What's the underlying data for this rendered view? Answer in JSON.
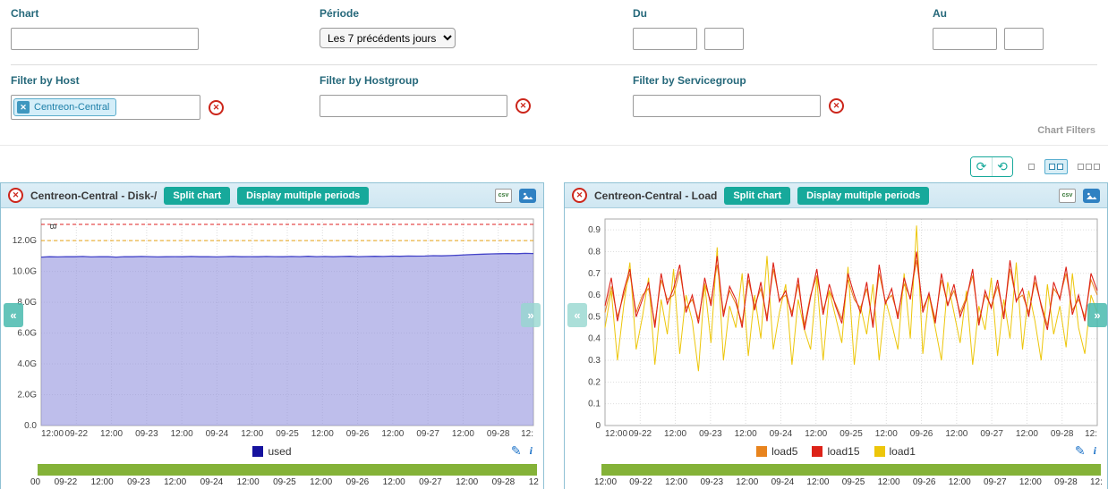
{
  "filters": {
    "chart": {
      "label": "Chart",
      "value": ""
    },
    "periode": {
      "label": "Période",
      "selected": "Les 7 précédents jours"
    },
    "du": {
      "label": "Du",
      "date": "",
      "time": ""
    },
    "au": {
      "label": "Au",
      "date": "",
      "time": ""
    },
    "host": {
      "label": "Filter by Host",
      "chip": "Centreon-Central"
    },
    "hostgroup": {
      "label": "Filter by Hostgroup",
      "value": ""
    },
    "servicegroup": {
      "label": "Filter by Servicegroup",
      "value": ""
    },
    "section_label": "Chart Filters"
  },
  "toolbar": {
    "refresh_icon": "circular-arrows",
    "autorefresh_icon": "clock-refresh",
    "layout_options": [
      "one-column",
      "two-columns",
      "three-columns"
    ],
    "active_layout": "two-columns"
  },
  "colors": {
    "teal": "#17a99b",
    "label_teal": "#25687a",
    "green_bar": "#84b238",
    "panel_border": "#8fc1d4",
    "warning": "#e7a213",
    "critical": "#df2020"
  },
  "charts": [
    {
      "title": "Centreon-Central - Disk-/",
      "split_label": "Split chart",
      "periods_label": "Display multiple periods",
      "legend": [
        {
          "name": "used",
          "color": "#16129e"
        }
      ],
      "range_labels": [
        "00",
        "09-22",
        "12:00",
        "09-23",
        "12:00",
        "09-24",
        "12:00",
        "09-25",
        "12:00",
        "09-26",
        "12:00",
        "09-27",
        "12:00",
        "09-28",
        "12"
      ],
      "chart_data": {
        "type": "area",
        "unit": "B",
        "ylim": [
          0,
          13.4
        ],
        "yticks": [
          {
            "v": 0,
            "label": "0.0"
          },
          {
            "v": 2,
            "label": "2.0G"
          },
          {
            "v": 4,
            "label": "4.0G"
          },
          {
            "v": 6,
            "label": "6.0G"
          },
          {
            "v": 8,
            "label": "8.0G"
          },
          {
            "v": 10,
            "label": "10.0G"
          },
          {
            "v": 12,
            "label": "12.0G"
          }
        ],
        "xticks": [
          "12:00",
          "09-22",
          "12:00",
          "09-23",
          "12:00",
          "09-24",
          "12:00",
          "09-25",
          "12:00",
          "09-26",
          "12:00",
          "09-27",
          "12:00",
          "09-28",
          "12:"
        ],
        "thresholds": [
          {
            "name": "warning",
            "value": 12.0,
            "color": "#e7a213"
          },
          {
            "name": "critical",
            "value": 13.05,
            "color": "#df2020"
          }
        ],
        "series": [
          {
            "name": "used",
            "color": "#4343c8",
            "fill": "rgba(147,147,222,0.6)",
            "width": 1.3,
            "values": [
              10.93,
              10.95,
              10.94,
              10.96,
              10.95,
              10.97,
              10.94,
              10.96,
              10.95,
              10.93,
              10.96,
              10.95,
              10.97,
              10.96,
              10.94,
              10.95,
              10.96,
              10.95,
              10.97,
              10.95,
              10.96,
              10.94,
              10.96,
              10.97,
              10.95,
              10.96,
              10.95,
              10.97,
              10.96,
              10.95,
              10.97,
              10.96,
              10.98,
              10.96,
              10.97,
              10.95,
              10.97,
              10.98,
              10.96,
              10.97,
              10.98,
              10.97,
              10.99,
              10.98,
              11.0,
              10.99,
              11.0,
              11.02,
              11.01,
              11.03,
              11.05,
              11.08,
              11.1,
              11.12,
              11.14,
              11.15,
              11.16,
              11.15,
              11.17,
              11.16
            ]
          }
        ]
      }
    },
    {
      "title": "Centreon-Central - Load",
      "split_label": "Split chart",
      "periods_label": "Display multiple periods",
      "legend": [
        {
          "name": "load5",
          "color": "#e8841e"
        },
        {
          "name": "load15",
          "color": "#dd2218"
        },
        {
          "name": "load1",
          "color": "#edc60a"
        }
      ],
      "range_labels": [
        "12:00",
        "09-22",
        "12:00",
        "09-23",
        "12:00",
        "09-24",
        "12:00",
        "09-25",
        "12:00",
        "09-26",
        "12:00",
        "09-27",
        "12:00",
        "09-28",
        "12:"
      ],
      "chart_data": {
        "type": "line",
        "ylim": [
          0,
          0.95
        ],
        "yticks": [
          {
            "v": 0,
            "label": "0"
          },
          {
            "v": 0.1,
            "label": "0.1"
          },
          {
            "v": 0.2,
            "label": "0.2"
          },
          {
            "v": 0.3,
            "label": "0.3"
          },
          {
            "v": 0.4,
            "label": "0.4"
          },
          {
            "v": 0.5,
            "label": "0.5"
          },
          {
            "v": 0.6,
            "label": "0.6"
          },
          {
            "v": 0.7,
            "label": "0.7"
          },
          {
            "v": 0.8,
            "label": "0.8"
          },
          {
            "v": 0.9,
            "label": "0.9"
          }
        ],
        "xticks": [
          "12:00",
          "09-22",
          "12:00",
          "09-23",
          "12:00",
          "09-24",
          "12:00",
          "09-25",
          "12:00",
          "09-26",
          "12:00",
          "09-27",
          "12:00",
          "09-28",
          "12:"
        ],
        "thresholds": [],
        "series": [
          {
            "name": "load5",
            "color": "#e8841e",
            "width": 1,
            "values": [
              0.52,
              0.64,
              0.5,
              0.6,
              0.7,
              0.52,
              0.6,
              0.63,
              0.47,
              0.67,
              0.58,
              0.6,
              0.71,
              0.54,
              0.58,
              0.49,
              0.65,
              0.57,
              0.74,
              0.52,
              0.62,
              0.56,
              0.47,
              0.67,
              0.55,
              0.63,
              0.5,
              0.72,
              0.58,
              0.6,
              0.52,
              0.65,
              0.46,
              0.6,
              0.69,
              0.53,
              0.62,
              0.56,
              0.49,
              0.67,
              0.58,
              0.54,
              0.63,
              0.47,
              0.7,
              0.57,
              0.6,
              0.51,
              0.65,
              0.59,
              0.76,
              0.54,
              0.6,
              0.49,
              0.67,
              0.56,
              0.62,
              0.52,
              0.59,
              0.69,
              0.48,
              0.6,
              0.55,
              0.64,
              0.51,
              0.72,
              0.58,
              0.6,
              0.52,
              0.66,
              0.56,
              0.46,
              0.63,
              0.59,
              0.7,
              0.53,
              0.58,
              0.5,
              0.67,
              0.6
            ]
          },
          {
            "name": "load1",
            "color": "#edc60a",
            "width": 1,
            "values": [
              0.45,
              0.62,
              0.3,
              0.55,
              0.75,
              0.35,
              0.5,
              0.68,
              0.28,
              0.58,
              0.42,
              0.72,
              0.33,
              0.6,
              0.48,
              0.25,
              0.65,
              0.38,
              0.82,
              0.3,
              0.55,
              0.45,
              0.7,
              0.32,
              0.6,
              0.4,
              0.78,
              0.35,
              0.52,
              0.65,
              0.28,
              0.58,
              0.44,
              0.35,
              0.68,
              0.3,
              0.62,
              0.5,
              0.38,
              0.73,
              0.28,
              0.55,
              0.42,
              0.65,
              0.3,
              0.58,
              0.47,
              0.35,
              0.7,
              0.4,
              0.92,
              0.33,
              0.6,
              0.45,
              0.3,
              0.66,
              0.52,
              0.38,
              0.62,
              0.28,
              0.55,
              0.44,
              0.68,
              0.32,
              0.58,
              0.4,
              0.75,
              0.35,
              0.62,
              0.48,
              0.3,
              0.65,
              0.42,
              0.55,
              0.36,
              0.7,
              0.45,
              0.33,
              0.6,
              0.52
            ]
          },
          {
            "name": "load15",
            "color": "#dd2218",
            "width": 1.1,
            "values": [
              0.55,
              0.68,
              0.48,
              0.62,
              0.72,
              0.5,
              0.58,
              0.66,
              0.45,
              0.7,
              0.56,
              0.63,
              0.74,
              0.52,
              0.6,
              0.47,
              0.68,
              0.55,
              0.78,
              0.5,
              0.64,
              0.58,
              0.45,
              0.7,
              0.53,
              0.66,
              0.48,
              0.75,
              0.57,
              0.62,
              0.5,
              0.68,
              0.44,
              0.59,
              0.72,
              0.51,
              0.65,
              0.55,
              0.47,
              0.7,
              0.6,
              0.52,
              0.66,
              0.45,
              0.74,
              0.56,
              0.63,
              0.49,
              0.68,
              0.58,
              0.8,
              0.52,
              0.61,
              0.47,
              0.7,
              0.55,
              0.65,
              0.5,
              0.58,
              0.72,
              0.46,
              0.62,
              0.54,
              0.67,
              0.49,
              0.76,
              0.57,
              0.63,
              0.5,
              0.69,
              0.55,
              0.44,
              0.66,
              0.58,
              0.73,
              0.51,
              0.6,
              0.48,
              0.7,
              0.62
            ]
          }
        ]
      }
    }
  ]
}
